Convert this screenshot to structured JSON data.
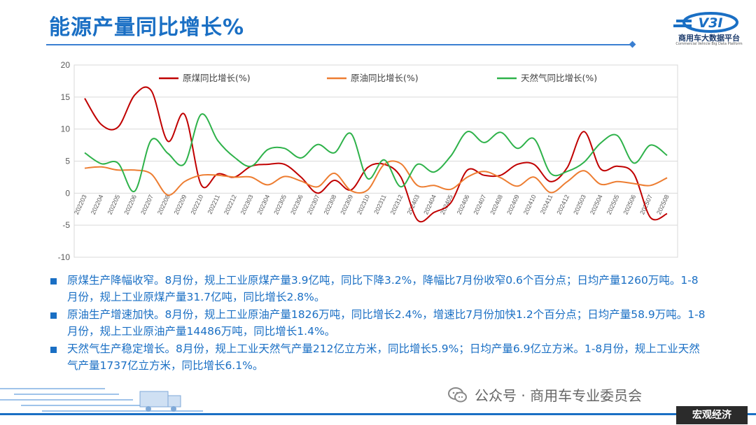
{
  "header": {
    "title": "能源产量同比增长%",
    "logo_name": "商用车大数据平台",
    "logo_sub": "Commercial Vehicle Big Data Platform",
    "logo_mark": "V3I"
  },
  "chart_data": {
    "type": "line",
    "ylim": [
      -10,
      20
    ],
    "yticks": [
      -10,
      -5,
      0,
      5,
      10,
      15,
      20
    ],
    "categories": [
      "202203",
      "202204",
      "202205",
      "202206",
      "202207",
      "202208",
      "202209",
      "202210",
      "202211",
      "202212",
      "202303",
      "202304",
      "202305",
      "202306",
      "202307",
      "202308",
      "202309",
      "202310",
      "202311",
      "202312",
      "202403",
      "202404",
      "202405",
      "202406",
      "202407",
      "202408",
      "202409",
      "202410",
      "202411",
      "202412",
      "202503",
      "202504",
      "202505",
      "202506",
      "202507",
      "202508"
    ],
    "grid": true,
    "legend_position": "top",
    "series": [
      {
        "name": "原煤同比增长(%)",
        "color": "#c00000",
        "values": [
          14.8,
          10.7,
          10.3,
          15.3,
          16.0,
          8.1,
          12.3,
          1.3,
          3.0,
          2.5,
          4.2,
          4.5,
          4.5,
          2.5,
          0.0,
          2.0,
          0.5,
          4.0,
          4.5,
          2.5,
          -4.2,
          -3.0,
          -1.5,
          3.6,
          2.8,
          2.8,
          4.5,
          4.5,
          1.8,
          4.0,
          9.6,
          3.8,
          4.2,
          3.0,
          -3.8,
          -3.2
        ]
      },
      {
        "name": "原油同比增长(%)",
        "color": "#ed7d31",
        "values": [
          3.9,
          4.1,
          3.6,
          3.6,
          3.0,
          -0.3,
          1.8,
          2.8,
          2.8,
          2.5,
          2.5,
          1.3,
          2.6,
          1.9,
          1.0,
          3.1,
          0.4,
          0.5,
          4.5,
          4.6,
          1.2,
          1.2,
          0.6,
          2.5,
          3.4,
          2.4,
          1.1,
          2.5,
          0.1,
          1.8,
          3.5,
          1.4,
          1.8,
          1.5,
          1.2,
          2.4
        ]
      },
      {
        "name": "天然气同比增长(%)",
        "color": "#2eb24a",
        "values": [
          6.3,
          4.6,
          4.7,
          0.3,
          8.3,
          6.2,
          4.6,
          12.3,
          8.2,
          5.6,
          4.2,
          6.8,
          7.0,
          5.5,
          7.6,
          6.3,
          9.3,
          2.3,
          5.2,
          1.0,
          4.5,
          3.3,
          5.8,
          9.6,
          7.9,
          9.5,
          7.0,
          8.5,
          3.1,
          3.4,
          4.8,
          7.8,
          9.0,
          4.7,
          7.5,
          5.9
        ]
      }
    ]
  },
  "bullets": [
    "原煤生产降幅收窄。8月份，规上工业原煤产量3.9亿吨，同比下降3.2%，降幅比7月份收窄0.6个百分点；日均产量1260万吨。1-8月份，规上工业原煤产量31.7亿吨，同比增长2.8%。",
    "原油生产增速加快。8月份，规上工业原油产量1826万吨，同比增长2.4%，增速比7月份加快1.2个百分点；日均产量58.9万吨。1-8月份，规上工业原油产量14486万吨，同比增长1.4%。",
    "天然气生产稳定增长。8月份，规上工业天然气产量212亿立方米，同比增长5.9%；日均产量6.9亿立方米。1-8月份，规上工业天然气产量1737亿立方米，同比增长6.1%。"
  ],
  "footer": {
    "wechat_text": "公众号 · 商用车专业委员会",
    "tag": "宏观经济"
  }
}
